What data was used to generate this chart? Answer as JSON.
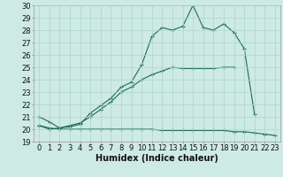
{
  "xlabel": "Humidex (Indice chaleur)",
  "bg_color": "#ceeae4",
  "grid_color": "#aed4ce",
  "line_color": "#1a6b5a",
  "x": [
    0,
    1,
    2,
    3,
    4,
    5,
    6,
    7,
    8,
    9,
    10,
    11,
    12,
    13,
    14,
    15,
    16,
    17,
    18,
    19,
    20,
    21,
    22,
    23
  ],
  "line1": [
    21.0,
    20.6,
    20.1,
    20.2,
    20.4,
    21.3,
    21.9,
    22.5,
    23.4,
    23.8,
    25.2,
    27.5,
    28.2,
    28.0,
    28.3,
    30.0,
    28.2,
    28.0,
    28.5,
    27.8,
    26.5,
    21.2,
    null,
    null
  ],
  "line2": [
    20.3,
    20.0,
    20.1,
    20.3,
    20.5,
    21.0,
    21.6,
    22.2,
    23.0,
    23.4,
    24.0,
    24.4,
    24.7,
    25.0,
    24.9,
    24.9,
    24.9,
    24.9,
    25.0,
    25.0,
    null,
    null,
    null,
    null
  ],
  "line3": [
    20.3,
    20.1,
    20.0,
    20.0,
    20.0,
    20.0,
    20.0,
    20.0,
    20.0,
    20.0,
    20.0,
    20.0,
    19.9,
    19.9,
    19.9,
    19.9,
    19.9,
    19.9,
    19.9,
    19.8,
    19.8,
    19.7,
    19.6,
    19.5
  ],
  "ylim": [
    19,
    30
  ],
  "xlim": [
    -0.5,
    23.5
  ],
  "yticks": [
    19,
    20,
    21,
    22,
    23,
    24,
    25,
    26,
    27,
    28,
    29,
    30
  ],
  "xticks": [
    0,
    1,
    2,
    3,
    4,
    5,
    6,
    7,
    8,
    9,
    10,
    11,
    12,
    13,
    14,
    15,
    16,
    17,
    18,
    19,
    20,
    21,
    22,
    23
  ],
  "tick_fontsize": 6,
  "label_fontsize": 7
}
